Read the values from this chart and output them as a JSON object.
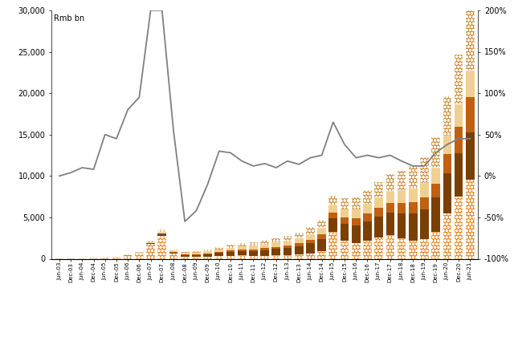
{
  "ylabel_left": "Rmb bn",
  "ylim_left": [
    0,
    30000
  ],
  "ylim_right": [
    -1.0,
    2.0
  ],
  "yticks_left": [
    0,
    5000,
    10000,
    15000,
    20000,
    25000,
    30000
  ],
  "yticks_right": [
    -1.0,
    -0.5,
    0.0,
    0.5,
    1.0,
    1.5,
    2.0
  ],
  "ytick_labels_left": [
    "0",
    "5,000",
    "10,000",
    "15,000",
    "20,000",
    "25,000",
    "30,000"
  ],
  "ytick_labels_right": [
    "-100%",
    "-50%",
    "0%",
    "50%",
    "100%",
    "150%",
    "200%"
  ],
  "bar_width": 0.75,
  "colors": {
    "stocks": "#E8892A",
    "bonds": "#7B3F00",
    "funds": "#C06010",
    "warrants": "#6050A0",
    "cash": "#F0D090",
    "others": "#D09040"
  },
  "line_color": "#808080",
  "x_labels": [
    "Jun-03",
    "Dec-03",
    "Jun-04",
    "Dec-04",
    "Jun-05",
    "Dec-05",
    "Jun-06",
    "Dec-06",
    "Jun-07",
    "Dec-07",
    "Jun-08",
    "Dec-08",
    "Jun-09",
    "Dec-09",
    "Jun-10",
    "Dec-10",
    "Jun-11",
    "Dec-11",
    "Jun-12",
    "Dec-12",
    "Jun-13",
    "Dec-13",
    "Jun-14",
    "Dec-14",
    "Jun-15",
    "Dec-15",
    "Jun-16",
    "Dec-16",
    "Jun-17",
    "Dec-17",
    "Jun-18",
    "Dec-18",
    "Jun-19",
    "Dec-19",
    "Jun-20",
    "Dec-20",
    "Jun-21"
  ],
  "stocks": [
    30,
    20,
    30,
    40,
    100,
    120,
    350,
    600,
    1800,
    2800,
    600,
    200,
    200,
    250,
    320,
    380,
    400,
    350,
    380,
    400,
    450,
    500,
    650,
    900,
    3200,
    2200,
    1900,
    2200,
    2600,
    2900,
    2500,
    2200,
    2400,
    3200,
    5500,
    7500,
    9500
  ],
  "bonds": [
    5,
    5,
    8,
    10,
    15,
    20,
    25,
    40,
    60,
    120,
    150,
    200,
    250,
    300,
    380,
    450,
    520,
    600,
    680,
    780,
    880,
    1000,
    1200,
    1500,
    1700,
    2000,
    2100,
    2300,
    2500,
    2700,
    3000,
    3300,
    3600,
    4200,
    4800,
    5200,
    5800
  ],
  "funds": [
    3,
    3,
    5,
    8,
    10,
    15,
    18,
    25,
    40,
    80,
    80,
    90,
    100,
    120,
    150,
    170,
    190,
    210,
    240,
    270,
    310,
    360,
    450,
    550,
    650,
    750,
    850,
    950,
    1050,
    1150,
    1250,
    1350,
    1450,
    1700,
    2300,
    3200,
    4200
  ],
  "warrants": [
    0,
    0,
    0,
    0,
    0,
    0,
    3,
    8,
    12,
    15,
    8,
    3,
    2,
    1,
    1,
    1,
    1,
    1,
    1,
    1,
    1,
    1,
    1,
    1,
    1,
    1,
    1,
    1,
    1,
    1,
    1,
    1,
    1,
    1,
    1,
    1,
    1
  ],
  "cash": [
    15,
    18,
    22,
    28,
    40,
    50,
    65,
    85,
    120,
    250,
    160,
    160,
    200,
    240,
    280,
    330,
    370,
    420,
    460,
    510,
    560,
    620,
    700,
    800,
    900,
    1000,
    1100,
    1200,
    1300,
    1400,
    1500,
    1600,
    1700,
    1900,
    2300,
    2800,
    3200
  ],
  "others": [
    10,
    12,
    15,
    20,
    30,
    40,
    60,
    90,
    150,
    280,
    150,
    150,
    190,
    230,
    280,
    330,
    400,
    450,
    490,
    540,
    600,
    680,
    800,
    980,
    1150,
    1350,
    1450,
    1650,
    1850,
    2100,
    2400,
    2750,
    3150,
    3700,
    4700,
    6000,
    7800
  ],
  "yoy_growth": [
    0.0,
    0.04,
    0.1,
    0.08,
    0.5,
    0.45,
    0.8,
    0.95,
    2.0,
    2.0,
    0.55,
    -0.55,
    -0.42,
    -0.1,
    0.3,
    0.28,
    0.18,
    0.12,
    0.15,
    0.1,
    0.18,
    0.14,
    0.22,
    0.25,
    0.65,
    0.38,
    0.22,
    0.25,
    0.22,
    0.25,
    0.18,
    0.12,
    0.12,
    0.28,
    0.38,
    0.45,
    0.45
  ]
}
